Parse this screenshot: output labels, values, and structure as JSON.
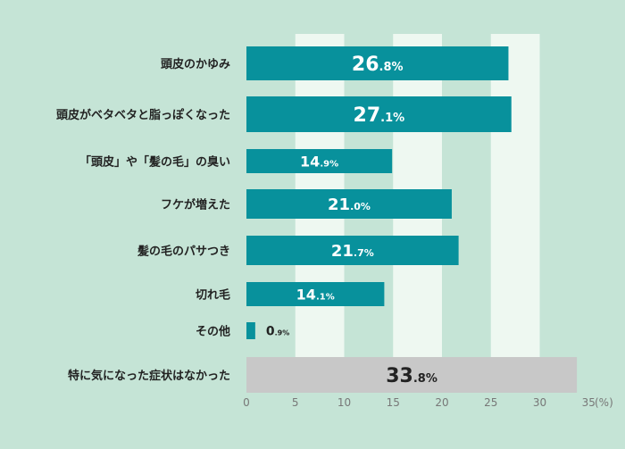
{
  "chart_data": {
    "type": "bar",
    "orientation": "horizontal",
    "categories": [
      "頭皮のかゆみ",
      "頭皮がベタベタと脂っぽくなった",
      "「頭皮」や「髪の毛」の臭い",
      "フケが増えた",
      "髪の毛のパサつき",
      "切れ毛",
      "その他",
      "特に気になった症状はなかった"
    ],
    "values": [
      26.8,
      27.1,
      14.9,
      21.0,
      21.7,
      14.1,
      0.9,
      33.8
    ],
    "value_labels": [
      "26.8%",
      "27.1%",
      "14.9%",
      "21.0%",
      "21.7%",
      "14.1%",
      "0.9%",
      "33.8%"
    ],
    "xlim": [
      0,
      35
    ],
    "xticks": [
      "0",
      "5",
      "10",
      "15",
      "20",
      "25",
      "30",
      "35"
    ],
    "xunit": "(%)",
    "grid": true,
    "colors": {
      "bar": "#08919c",
      "bar_none": "#c8c8c8",
      "background": "#c5e4d6",
      "band": "#eef8f1"
    }
  }
}
